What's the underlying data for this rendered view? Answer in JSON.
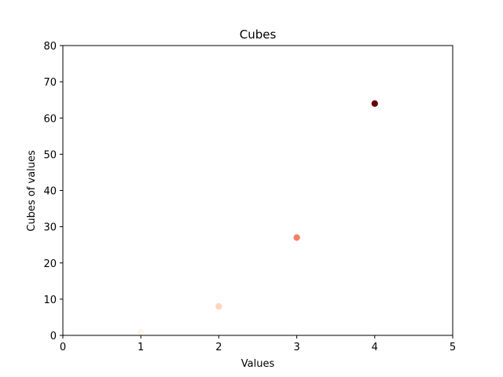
{
  "chart_data": {
    "type": "scatter",
    "title": "Cubes",
    "xlabel": "Values",
    "ylabel": "Cubes of values",
    "xlim": [
      0,
      5
    ],
    "ylim": [
      0,
      80
    ],
    "xticks": [
      0,
      1,
      2,
      3,
      4,
      5
    ],
    "yticks": [
      0,
      10,
      20,
      30,
      40,
      50,
      60,
      70,
      80
    ],
    "grid": false,
    "colormap": "Reds",
    "colors": [
      "#fff5f0",
      "#fdd4c2",
      "#f0826a",
      "#67000d"
    ],
    "points": [
      {
        "x": 1,
        "y": 1
      },
      {
        "x": 2,
        "y": 8
      },
      {
        "x": 3,
        "y": 27
      },
      {
        "x": 4,
        "y": 64
      }
    ]
  }
}
